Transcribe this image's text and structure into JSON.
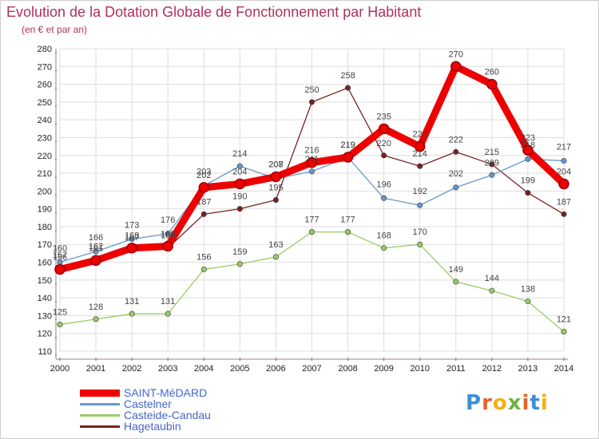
{
  "title": "Evolution de la Dotation Globale de Fonctionnement par Habitant",
  "subtitle": "(en € et par an)",
  "brand": {
    "text": "Proxiti",
    "letter_colors": [
      "#3a8fd6",
      "#e8622a",
      "#f2b016",
      "#6db33f",
      "#e8622a",
      "#3a8fd6",
      "#f2b016"
    ]
  },
  "chart_data": {
    "type": "line",
    "title": "Evolution de la Dotation Globale de Fonctionnement par Habitant",
    "subtitle": "(en € et par an)",
    "x": [
      2000,
      2001,
      2002,
      2003,
      2004,
      2005,
      2006,
      2007,
      2008,
      2009,
      2010,
      2011,
      2012,
      2013,
      2014
    ],
    "ylim": [
      110,
      280
    ],
    "yticks": [
      110,
      120,
      130,
      140,
      150,
      160,
      170,
      180,
      190,
      200,
      210,
      220,
      230,
      240,
      250,
      260,
      270,
      280
    ],
    "grid": true,
    "legend_position": "bottom-left",
    "series": [
      {
        "name": "SAINT-MéDARD",
        "color": "#ee0000",
        "emphasis": true,
        "values": [
          156,
          161,
          168,
          169,
          202,
          204,
          208,
          216,
          219,
          235,
          225,
          270,
          260,
          223,
          204
        ],
        "labels": [
          "156",
          "161",
          "168",
          "169",
          "202",
          "204",
          "208",
          "216",
          "219",
          "235",
          "225",
          "270",
          "260",
          "223",
          "204"
        ]
      },
      {
        "name": "Castelner",
        "color": "#6699cc",
        "values": [
          160,
          166,
          173,
          176,
          203,
          214,
          207,
          211,
          219,
          196,
          192,
          202,
          209,
          218,
          217
        ],
        "labels": [
          "160",
          "166",
          "173",
          "176",
          "203",
          "214",
          "207",
          "211",
          "219",
          "196",
          "192",
          "202",
          "209",
          "218",
          "217"
        ]
      },
      {
        "name": "Casteide-Candau",
        "color": "#99cc66",
        "values": [
          125,
          128,
          131,
          131,
          156,
          159,
          163,
          177,
          177,
          168,
          170,
          149,
          144,
          138,
          121
        ],
        "labels": [
          "125",
          "128",
          "131",
          "131",
          "156",
          "159",
          "163",
          "177",
          "177",
          "168",
          "170",
          "149",
          "144",
          "138",
          "121"
        ]
      },
      {
        "name": "Hagetaubin",
        "color": "#772222",
        "values": [
          157,
          162,
          167,
          168,
          187,
          190,
          195,
          250,
          258,
          220,
          214,
          222,
          215,
          199,
          187
        ],
        "labels": [
          "157",
          "162",
          "167",
          "168",
          "187",
          "190",
          "195",
          "250",
          "258",
          "220",
          "214",
          "222",
          "215",
          "199",
          "187"
        ]
      }
    ]
  }
}
